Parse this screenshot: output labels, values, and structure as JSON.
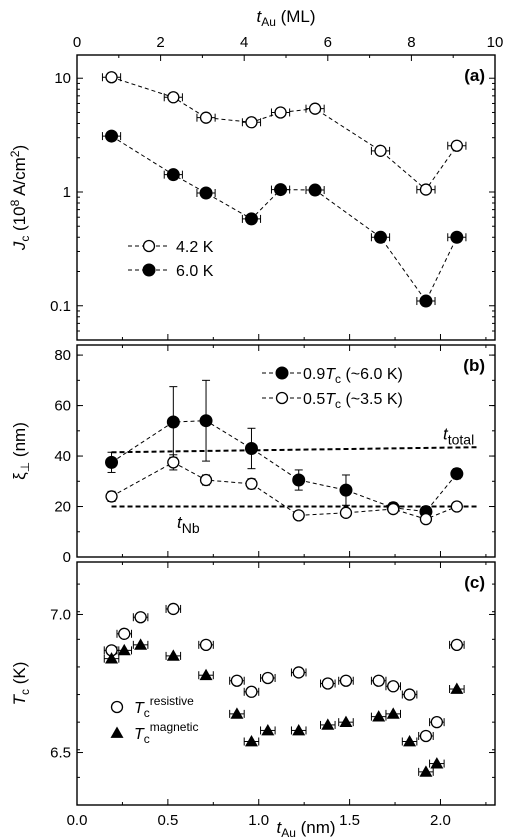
{
  "chart_data": [
    {
      "id": "a",
      "panel_tag": "(a)",
      "type": "scatter",
      "scale_y": "log",
      "ylabel_main": "J",
      "ylabel_sub": "c",
      "ylabel_unit_pre": " (10",
      "ylabel_unit_exp": "8",
      "ylabel_unit_mid": " A/cm",
      "ylabel_unit_exp2": "2",
      "ylabel_unit_post": ")",
      "top_xlabel_main": "t",
      "top_xlabel_sub": "Au",
      "top_xlabel_unit": " (ML)",
      "top_xlim": [
        0,
        10
      ],
      "top_xticks": [
        "0",
        "2",
        "4",
        "6",
        "8",
        "10"
      ],
      "xlim": [
        0,
        2.3
      ],
      "ylim": [
        0.05,
        16
      ],
      "yticks": [
        {
          "value": 0.1,
          "label": "0.1"
        },
        {
          "value": 1,
          "label": "1"
        },
        {
          "value": 10,
          "label": "10"
        }
      ],
      "series": [
        {
          "name": "4.2 K",
          "marker": "open-circle",
          "line": "dashed",
          "x": [
            0.19,
            0.53,
            0.71,
            0.96,
            1.12,
            1.31,
            1.67,
            1.92,
            2.09
          ],
          "y": [
            10.2,
            6.8,
            4.5,
            4.1,
            5.0,
            5.4,
            2.3,
            1.05,
            2.55
          ],
          "xerr": 0.05
        },
        {
          "name": "6.0 K",
          "marker": "filled-circle",
          "line": "dashed",
          "x": [
            0.19,
            0.53,
            0.71,
            0.96,
            1.12,
            1.31,
            1.67,
            1.92,
            2.09
          ],
          "y": [
            3.1,
            1.42,
            0.98,
            0.58,
            1.05,
            1.04,
            0.4,
            0.11,
            0.4
          ],
          "xerr": 0.05
        }
      ]
    },
    {
      "id": "b",
      "panel_tag": "(b)",
      "type": "scatter",
      "ylabel_main": "ξ",
      "ylabel_sub": "⊥",
      "ylabel_unit": " (nm)",
      "xlim": [
        0,
        2.3
      ],
      "ylim": [
        0,
        84
      ],
      "yticks": [
        {
          "value": 0,
          "label": "0"
        },
        {
          "value": 20,
          "label": "20"
        },
        {
          "value": 40,
          "label": "40"
        },
        {
          "value": 60,
          "label": "60"
        },
        {
          "value": 80,
          "label": "80"
        }
      ],
      "series": [
        {
          "name_main": "0.9T",
          "name_sub": "c",
          "name_post": " (~6.0 K)",
          "marker": "filled-circle",
          "line": "dashed",
          "x": [
            0.19,
            0.53,
            0.71,
            0.96,
            1.22,
            1.48,
            1.74,
            1.92,
            2.09
          ],
          "y": [
            37.5,
            53.5,
            54.0,
            43.0,
            30.5,
            26.5,
            19.5,
            18.0,
            33.0
          ],
          "yerr": [
            4,
            14,
            16,
            8,
            4,
            6,
            2,
            2,
            2
          ]
        },
        {
          "name_main": "0.5T",
          "name_sub": "c",
          "name_post": " (~3.5 K)",
          "marker": "open-circle",
          "line": "dashed",
          "x": [
            0.19,
            0.53,
            0.71,
            0.96,
            1.22,
            1.48,
            1.74,
            1.92,
            2.09
          ],
          "y": [
            24.0,
            37.5,
            30.5,
            29.0,
            16.5,
            17.5,
            19.0,
            15.0,
            20.0
          ],
          "yerr": [
            2,
            3,
            2,
            2,
            1.5,
            1.5,
            1.5,
            1.5,
            1.5
          ]
        }
      ],
      "reference_lines": [
        {
          "label_main": "t",
          "label_sub": "total",
          "x": [
            0.19,
            2.2
          ],
          "y": [
            41.5,
            43.5
          ]
        },
        {
          "label_main": "t",
          "label_sub": "Nb",
          "x": [
            0.19,
            2.2
          ],
          "y": [
            20.0,
            20.0
          ]
        }
      ]
    },
    {
      "id": "c",
      "panel_tag": "(c)",
      "type": "scatter",
      "ylabel_main": "T",
      "ylabel_sub": "c",
      "ylabel_unit": " (K)",
      "xlabel_main": "t",
      "xlabel_sub": "Au",
      "xlabel_unit": " (nm)",
      "xlim": [
        0,
        2.3
      ],
      "xticks": [
        "0.0",
        "0.5",
        "1.0",
        "1.5",
        "2.0"
      ],
      "ylim": [
        6.31,
        7.19
      ],
      "yticks": [
        {
          "value": 6.5,
          "label": "6.5"
        },
        {
          "value": 7.0,
          "label": "7.0"
        }
      ],
      "series": [
        {
          "name_main": "T",
          "name_sub": "c",
          "name_sup": "resistive",
          "marker": "open-circle",
          "x": [
            0.19,
            0.26,
            0.35,
            0.53,
            0.71,
            0.88,
            0.96,
            1.05,
            1.22,
            1.38,
            1.48,
            1.66,
            1.74,
            1.83,
            1.92,
            1.98,
            2.09
          ],
          "y": [
            6.87,
            6.93,
            6.99,
            7.02,
            6.89,
            6.76,
            6.72,
            6.77,
            6.79,
            6.75,
            6.76,
            6.76,
            6.74,
            6.71,
            6.56,
            6.61,
            6.89
          ],
          "xerr": 0.04
        },
        {
          "name_main": "T",
          "name_sub": "c",
          "name_sup": "magnetic",
          "marker": "filled-triangle",
          "x": [
            0.19,
            0.26,
            0.35,
            0.53,
            0.71,
            0.88,
            0.96,
            1.05,
            1.22,
            1.38,
            1.48,
            1.66,
            1.74,
            1.83,
            1.92,
            1.98,
            2.09
          ],
          "y": [
            6.84,
            6.87,
            6.89,
            6.85,
            6.78,
            6.64,
            6.54,
            6.58,
            6.58,
            6.6,
            6.61,
            6.63,
            6.64,
            6.54,
            6.43,
            6.46,
            6.73
          ],
          "xerr": 0.04
        }
      ]
    }
  ]
}
